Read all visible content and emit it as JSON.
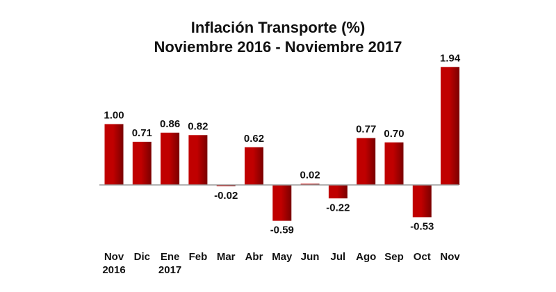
{
  "chart_data": {
    "type": "bar",
    "title": "Inflación  Transporte (%)",
    "subtitle": "Noviembre 2016 - Noviembre 2017",
    "categories": [
      [
        "Nov",
        "2016"
      ],
      [
        "Dic"
      ],
      [
        "Ene",
        "2017"
      ],
      [
        "Feb"
      ],
      [
        "Mar"
      ],
      [
        "Abr"
      ],
      [
        "May"
      ],
      [
        "Jun"
      ],
      [
        "Jul"
      ],
      [
        "Ago"
      ],
      [
        "Sep"
      ],
      [
        "Oct"
      ],
      [
        "Nov"
      ]
    ],
    "values": [
      1.0,
      0.71,
      0.86,
      0.82,
      -0.02,
      0.62,
      -0.59,
      0.02,
      -0.22,
      0.77,
      0.7,
      -0.53,
      1.94
    ],
    "value_labels": [
      "1.00",
      "0.71",
      "0.86",
      "0.82",
      "-0.02",
      "0.62",
      "-0.59",
      "0.02",
      "-0.22",
      "0.77",
      "0.70",
      "-0.53",
      "1.94"
    ],
    "bar_color": "#c00000",
    "bar_color_dark": "#7a0000",
    "xlabel": "",
    "ylabel": "",
    "grid": false,
    "legend": "none",
    "ylim": [
      -0.65,
      2.0
    ]
  }
}
